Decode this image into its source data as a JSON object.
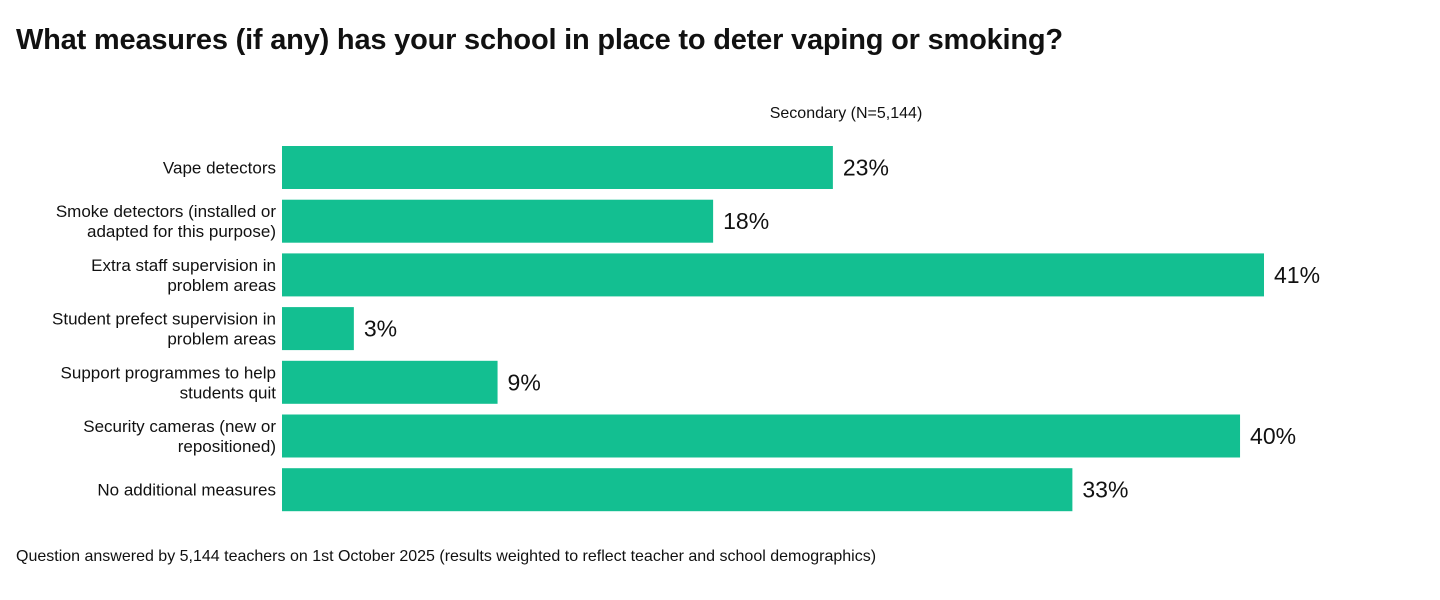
{
  "title": "What measures (if any) has your school in place to deter vaping or smoking?",
  "footnote": "Question answered by 5,144 teachers on 1st October 2025 (results weighted to reflect teacher and school demographics)",
  "colors": {
    "bar": "#13bf91",
    "text": "#111111"
  },
  "chart_data": {
    "type": "bar",
    "orientation": "horizontal",
    "title": "What measures (if any) has your school in place to deter vaping or smoking?",
    "series": [
      {
        "name": "Secondary (N=5,144)",
        "values": [
          23,
          18,
          41,
          3,
          9,
          40,
          33
        ]
      }
    ],
    "categories": [
      [
        "Vape detectors"
      ],
      [
        "Smoke detectors (installed or",
        "adapted for this purpose)"
      ],
      [
        "Extra staff supervision in",
        "problem areas"
      ],
      [
        "Student prefect supervision in",
        "problem areas"
      ],
      [
        "Support programmes to help",
        "students quit"
      ],
      [
        "Security cameras (new or",
        "repositioned)"
      ],
      [
        "No additional measures"
      ]
    ],
    "value_labels": [
      "23%",
      "18%",
      "41%",
      "3%",
      "9%",
      "40%",
      "33%"
    ],
    "unit": "%",
    "xlim": [
      0,
      41
    ],
    "grid": false,
    "legend": "top"
  }
}
